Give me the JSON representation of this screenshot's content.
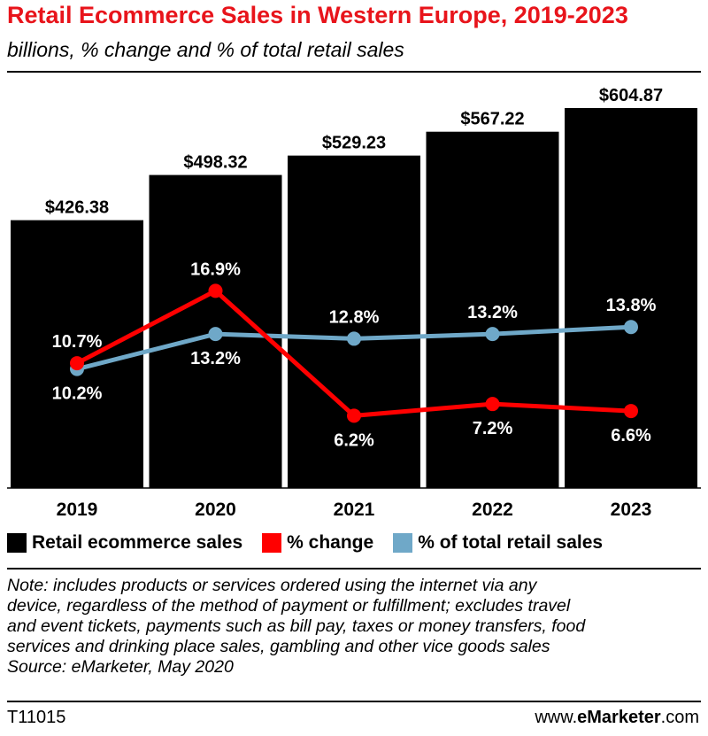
{
  "title": "Retail Ecommerce Sales in Western Europe, 2019-2023",
  "subtitle": "billions, % change and % of total retail sales",
  "chart_data": {
    "type": "bar",
    "categories": [
      "2019",
      "2020",
      "2021",
      "2022",
      "2023"
    ],
    "series": [
      {
        "name": "Retail ecommerce sales",
        "type": "bar",
        "values": [
          426.38,
          498.32,
          529.23,
          567.22,
          604.87
        ],
        "labels": [
          "$426.38",
          "$498.32",
          "$529.23",
          "$567.22",
          "$604.87"
        ],
        "color": "#000000"
      },
      {
        "name": "% change",
        "type": "line",
        "values": [
          10.7,
          16.9,
          6.2,
          7.2,
          6.6
        ],
        "labels": [
          "10.7%",
          "16.9%",
          "6.2%",
          "7.2%",
          "6.6%"
        ],
        "color": "#ff0000"
      },
      {
        "name": "% of total retail sales",
        "type": "line",
        "values": [
          10.2,
          13.2,
          12.8,
          13.2,
          13.8
        ],
        "labels": [
          "10.2%",
          "13.2%",
          "12.8%",
          "13.2%",
          "13.8%"
        ],
        "color": "#6fa8c8"
      }
    ],
    "ylim": [
      0,
      650
    ],
    "line_ylim": [
      0,
      35
    ],
    "grid": false,
    "legend_position": "bottom"
  },
  "legend": [
    {
      "label": "Retail ecommerce sales",
      "color": "#000000"
    },
    {
      "label": "% change",
      "color": "#ff0000"
    },
    {
      "label": "% of total retail sales",
      "color": "#6fa8c8"
    }
  ],
  "note": [
    "Note: includes products or services ordered using the internet via any",
    "device, regardless of the method of payment or fulfillment; excludes travel",
    "and event tickets, payments such as bill pay, taxes or money transfers, food",
    "services and drinking place sales, gambling and other vice goods sales",
    "Source: eMarketer, May 2020"
  ],
  "footer": {
    "id": "T11015",
    "brand_prefix": "www.",
    "brand_bold": "eMarketer",
    "brand_suffix": ".com"
  }
}
